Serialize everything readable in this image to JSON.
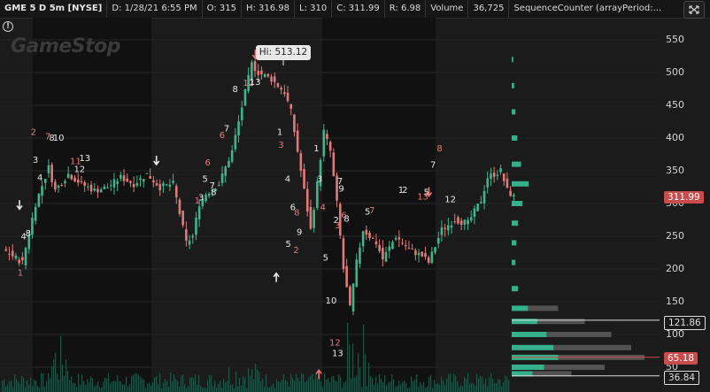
{
  "header": {
    "symbol": "GME 5 D 5m [NYSE]",
    "date": "D: 1/28/21 6:55 PM",
    "open": "O: 315",
    "high": "H: 316.98",
    "low": "L: 310",
    "close": "C: 311.99",
    "range": "R: 6.98",
    "volume_label": "Volume",
    "volume_value": "36,725",
    "study": "SequenceCounter (arrayPeriod:..."
  },
  "watermark": "GameStop",
  "hi_label": "Hi: 513.12",
  "price_axis": [
    "550",
    "500",
    "450",
    "400",
    "350",
    "300",
    "250",
    "200",
    "150",
    "100",
    "50"
  ],
  "price_tags": {
    "last": "311.99",
    "value_area_high": "121.86",
    "poc": "65.18",
    "value_area_low": "36.84"
  },
  "colors": {
    "up": "#3fb58b",
    "down": "#e07a7a",
    "session_shade": "#111111",
    "background": "#1b1b1b",
    "last_price": "#c94c4c",
    "volume_profile": "#36b08a"
  },
  "chart_data": {
    "type": "candlestick",
    "title": "GME 5 D 5m [NYSE]",
    "high_marker": 513.12,
    "last_close": 311.99,
    "ylim": [
      30,
      580
    ],
    "price_path": [
      {
        "t": 0,
        "p": 230
      },
      {
        "t": 3,
        "p": 210
      },
      {
        "t": 5,
        "p": 300
      },
      {
        "t": 7,
        "p": 355
      },
      {
        "t": 8,
        "p": 320
      },
      {
        "t": 10,
        "p": 345
      },
      {
        "t": 12,
        "p": 330
      },
      {
        "t": 14,
        "p": 320
      },
      {
        "t": 16,
        "p": 325
      },
      {
        "t": 18,
        "p": 340
      },
      {
        "t": 20,
        "p": 330
      },
      {
        "t": 22,
        "p": 345
      },
      {
        "t": 24,
        "p": 325
      },
      {
        "t": 26,
        "p": 330
      },
      {
        "t": 28,
        "p": 240
      },
      {
        "t": 29,
        "p": 250
      },
      {
        "t": 30,
        "p": 300
      },
      {
        "t": 31,
        "p": 315
      },
      {
        "t": 33,
        "p": 330
      },
      {
        "t": 35,
        "p": 380
      },
      {
        "t": 37,
        "p": 470
      },
      {
        "t": 38,
        "p": 513
      },
      {
        "t": 39,
        "p": 500
      },
      {
        "t": 41,
        "p": 490
      },
      {
        "t": 43,
        "p": 470
      },
      {
        "t": 44,
        "p": 440
      },
      {
        "t": 45,
        "p": 380
      },
      {
        "t": 46,
        "p": 320
      },
      {
        "t": 47,
        "p": 260
      },
      {
        "t": 48,
        "p": 330
      },
      {
        "t": 49,
        "p": 410
      },
      {
        "t": 50,
        "p": 380
      },
      {
        "t": 51,
        "p": 300
      },
      {
        "t": 52,
        "p": 200
      },
      {
        "t": 53,
        "p": 140
      },
      {
        "t": 54,
        "p": 210
      },
      {
        "t": 55,
        "p": 260
      },
      {
        "t": 57,
        "p": 240
      },
      {
        "t": 58,
        "p": 215
      },
      {
        "t": 60,
        "p": 250
      },
      {
        "t": 62,
        "p": 230
      },
      {
        "t": 64,
        "p": 220
      },
      {
        "t": 65,
        "p": 210
      },
      {
        "t": 67,
        "p": 260
      },
      {
        "t": 69,
        "p": 275
      },
      {
        "t": 71,
        "p": 270
      },
      {
        "t": 73,
        "p": 305
      },
      {
        "t": 74,
        "p": 340
      },
      {
        "t": 76,
        "p": 350
      },
      {
        "t": 77,
        "p": 320
      },
      {
        "t": 78,
        "p": 310
      }
    ],
    "volume_profile_levels": [
      {
        "price": 520,
        "weight": 0.05
      },
      {
        "price": 480,
        "weight": 0.08
      },
      {
        "price": 440,
        "weight": 0.12
      },
      {
        "price": 400,
        "weight": 0.18
      },
      {
        "price": 360,
        "weight": 0.3
      },
      {
        "price": 330,
        "weight": 0.55
      },
      {
        "price": 300,
        "weight": 0.35
      },
      {
        "price": 270,
        "weight": 0.2
      },
      {
        "price": 240,
        "weight": 0.15
      },
      {
        "price": 210,
        "weight": 0.12
      },
      {
        "price": 170,
        "weight": 0.2
      },
      {
        "price": 140,
        "weight": 0.35
      },
      {
        "price": 120,
        "weight": 0.55
      },
      {
        "price": 100,
        "weight": 0.75
      },
      {
        "price": 80,
        "weight": 0.9
      },
      {
        "price": 65,
        "weight": 1.0
      },
      {
        "price": 50,
        "weight": 0.7
      },
      {
        "price": 40,
        "weight": 0.45
      }
    ],
    "sequence_labels": [
      {
        "t": 2,
        "p": 190,
        "text": "1"
      },
      {
        "t": 2.5,
        "p": 245,
        "text": "4"
      },
      {
        "t": 3.2,
        "p": 250,
        "text": "8"
      },
      {
        "t": 4,
        "p": 405,
        "text": "2"
      },
      {
        "t": 4.3,
        "p": 362,
        "text": "3"
      },
      {
        "t": 5,
        "p": 335,
        "text": "4"
      },
      {
        "t": 6.2,
        "p": 398,
        "text": "7"
      },
      {
        "t": 6.8,
        "p": 396,
        "text": "8"
      },
      {
        "t": 7.4,
        "p": 396,
        "text": "10"
      },
      {
        "t": 10,
        "p": 360,
        "text": "11"
      },
      {
        "t": 10.6,
        "p": 348,
        "text": "12"
      },
      {
        "t": 11.4,
        "p": 365,
        "text": "13"
      },
      {
        "t": 29,
        "p": 300,
        "text": "1"
      },
      {
        "t": 29.6,
        "p": 305,
        "text": "3"
      },
      {
        "t": 30.2,
        "p": 333,
        "text": "5"
      },
      {
        "t": 30.6,
        "p": 358,
        "text": "6"
      },
      {
        "t": 31.3,
        "p": 323,
        "text": "7"
      },
      {
        "t": 31.5,
        "p": 313,
        "text": "8"
      },
      {
        "t": 32.8,
        "p": 400,
        "text": "6"
      },
      {
        "t": 33.5,
        "p": 410,
        "text": "7"
      },
      {
        "t": 34.8,
        "p": 470,
        "text": "8"
      },
      {
        "t": 36.4,
        "p": 480,
        "text": "12"
      },
      {
        "t": 37.4,
        "p": 481,
        "text": "13"
      },
      {
        "t": 41.6,
        "p": 405,
        "text": "1"
      },
      {
        "t": 41.8,
        "p": 385,
        "text": "3"
      },
      {
        "t": 42.8,
        "p": 333,
        "text": "4"
      },
      {
        "t": 43.6,
        "p": 290,
        "text": "6"
      },
      {
        "t": 44.2,
        "p": 282,
        "text": "8"
      },
      {
        "t": 44.6,
        "p": 252,
        "text": "9"
      },
      {
        "t": 42.9,
        "p": 234,
        "text": "5"
      },
      {
        "t": 44.1,
        "p": 224,
        "text": "2"
      },
      {
        "t": 47.2,
        "p": 380,
        "text": "1"
      },
      {
        "t": 47.7,
        "p": 333,
        "text": "3"
      },
      {
        "t": 48.2,
        "p": 290,
        "text": "4"
      },
      {
        "t": 48.6,
        "p": 213,
        "text": "5"
      },
      {
        "t": 49,
        "p": 147,
        "text": "10"
      },
      {
        "t": 49.6,
        "p": 83,
        "text": "12"
      },
      {
        "t": 50,
        "p": 67,
        "text": "13"
      },
      {
        "t": 50.2,
        "p": 270,
        "text": "2"
      },
      {
        "t": 50.4,
        "p": 262,
        "text": "3"
      },
      {
        "t": 50.8,
        "p": 330,
        "text": "7"
      },
      {
        "t": 51,
        "p": 318,
        "text": "9"
      },
      {
        "t": 51.4,
        "p": 278,
        "text": "6"
      },
      {
        "t": 51.8,
        "p": 272,
        "text": "8"
      },
      {
        "t": 55,
        "p": 283,
        "text": "5"
      },
      {
        "t": 55.7,
        "p": 285,
        "text": "7"
      },
      {
        "t": 60.1,
        "p": 316,
        "text": "1"
      },
      {
        "t": 60.7,
        "p": 316,
        "text": "2"
      },
      {
        "t": 63,
        "p": 306,
        "text": "13"
      },
      {
        "t": 64,
        "p": 313,
        "text": "5"
      },
      {
        "t": 65,
        "p": 355,
        "text": "7"
      },
      {
        "t": 66,
        "p": 380,
        "text": "8"
      },
      {
        "t": 67.2,
        "p": 302,
        "text": "12"
      }
    ],
    "arrows": [
      {
        "t": 2.3,
        "p": 305,
        "dir": "down",
        "color": "#e8e8e8"
      },
      {
        "t": 23.2,
        "p": 373,
        "dir": "down",
        "color": "#e8e8e8"
      },
      {
        "t": 38.3,
        "p": 535,
        "dir": "down",
        "color": "#e07a7a"
      },
      {
        "t": 41.5,
        "p": 180,
        "dir": "up",
        "color": "#e8e8e8"
      },
      {
        "t": 48,
        "p": 32,
        "dir": "up",
        "color": "#e07a7a"
      },
      {
        "t": 64.8,
        "p": 325,
        "dir": "down",
        "color": "#e07a7a"
      }
    ]
  }
}
